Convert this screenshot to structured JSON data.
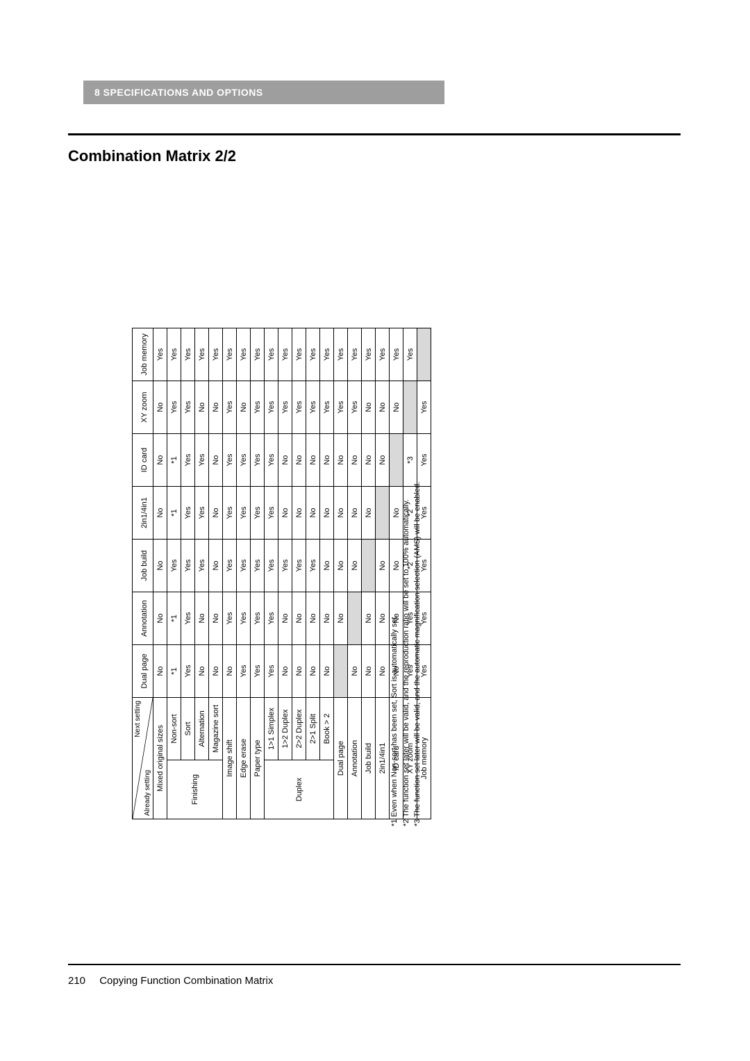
{
  "chapter": {
    "label": "8    SPECIFICATIONS AND OPTIONS"
  },
  "section": {
    "title": "Combination Matrix 2/2"
  },
  "footer": {
    "page": "210",
    "title": "Copying Function Combination Matrix"
  },
  "diag": {
    "next": "Next setting",
    "already": "Already setting"
  },
  "columns": [
    "Dual page",
    "Annotation",
    "Job build",
    "2in1/4in1",
    "ID card",
    "XY zoom",
    "Job memory"
  ],
  "footnotes": {
    "n1": "*1 Even when Non-sort has been set, Sort is automatically set.",
    "n2": "*2 The function set later will be valid, and the reproduction ratio will be set to 100% automatically.",
    "n3": "*3 The function set later will be valid, and the automatic magnification selection (AMS) will be enabled."
  },
  "rows": [
    {
      "main": "Mixed original sizes",
      "sub": "",
      "span": 2,
      "v": [
        "No",
        "No",
        "No",
        "No",
        "No",
        "No",
        "Yes"
      ]
    },
    {
      "main": "",
      "sub": "Non-sort",
      "v": [
        "*1",
        "*1",
        "Yes",
        "*1",
        "*1",
        "Yes",
        "Yes"
      ],
      "msub_of": "Finishing"
    },
    {
      "main": "Finishing",
      "sub": "Sort",
      "v": [
        "Yes",
        "Yes",
        "Yes",
        "Yes",
        "Yes",
        "Yes",
        "Yes"
      ],
      "mrows": 4
    },
    {
      "main": "",
      "sub": "Alternation",
      "v": [
        "No",
        "No",
        "Yes",
        "Yes",
        "Yes",
        "No",
        "Yes"
      ]
    },
    {
      "main": "",
      "sub": "Magazine sort",
      "v": [
        "No",
        "No",
        "No",
        "No",
        "No",
        "No",
        "Yes"
      ]
    },
    {
      "main": "Image shift",
      "sub": "",
      "span": 2,
      "v": [
        "No",
        "Yes",
        "Yes",
        "Yes",
        "Yes",
        "Yes",
        "Yes"
      ]
    },
    {
      "main": "Edge erase",
      "sub": "",
      "span": 2,
      "v": [
        "Yes",
        "Yes",
        "Yes",
        "Yes",
        "Yes",
        "No",
        "Yes"
      ]
    },
    {
      "main": "Paper type",
      "sub": "",
      "span": 2,
      "v": [
        "Yes",
        "Yes",
        "Yes",
        "Yes",
        "Yes",
        "Yes",
        "Yes"
      ]
    },
    {
      "main": "",
      "sub": "1>1 Simplex",
      "v": [
        "Yes",
        "Yes",
        "Yes",
        "Yes",
        "Yes",
        "Yes",
        "Yes"
      ],
      "msub_of": "Duplex"
    },
    {
      "main": "Duplex",
      "sub": "1>2 Duplex",
      "v": [
        "No",
        "No",
        "Yes",
        "No",
        "No",
        "Yes",
        "Yes"
      ],
      "mrows": 5
    },
    {
      "main": "",
      "sub": "2>2 Duplex",
      "v": [
        "No",
        "No",
        "Yes",
        "No",
        "No",
        "Yes",
        "Yes"
      ]
    },
    {
      "main": "",
      "sub": "2>1 Split",
      "v": [
        "No",
        "No",
        "Yes",
        "No",
        "No",
        "Yes",
        "Yes"
      ]
    },
    {
      "main": "",
      "sub": "Book > 2",
      "v": [
        "No",
        "No",
        "No",
        "No",
        "No",
        "Yes",
        "Yes"
      ]
    },
    {
      "main": "Dual page",
      "sub": "",
      "span": 2,
      "v": [
        "SHADE",
        "No",
        "No",
        "No",
        "No",
        "Yes",
        "Yes"
      ]
    },
    {
      "main": "Annotation",
      "sub": "",
      "span": 2,
      "v": [
        "No",
        "SHADE",
        "No",
        "No",
        "No",
        "Yes",
        "Yes"
      ]
    },
    {
      "main": "Job build",
      "sub": "",
      "span": 2,
      "v": [
        "No",
        "No",
        "SHADE",
        "No",
        "No",
        "No",
        "Yes"
      ]
    },
    {
      "main": "2in1/4in1",
      "sub": "",
      "span": 2,
      "v": [
        "No",
        "No",
        "No",
        "SHADE",
        "No",
        "No",
        "Yes"
      ]
    },
    {
      "main": "ID card",
      "sub": "",
      "span": 2,
      "v": [
        "No",
        "No",
        "No",
        "No",
        "SHADE",
        "No",
        "Yes"
      ]
    },
    {
      "main": "XY zoom",
      "sub": "",
      "span": 2,
      "v": [
        "Yes",
        "Yes",
        "*2",
        "*2",
        "*3",
        "SHADE",
        "Yes"
      ]
    },
    {
      "main": "Job memory",
      "sub": "",
      "span": 2,
      "v": [
        "Yes",
        "Yes",
        "Yes",
        "Yes",
        "Yes",
        "Yes",
        "SHADE"
      ]
    }
  ]
}
